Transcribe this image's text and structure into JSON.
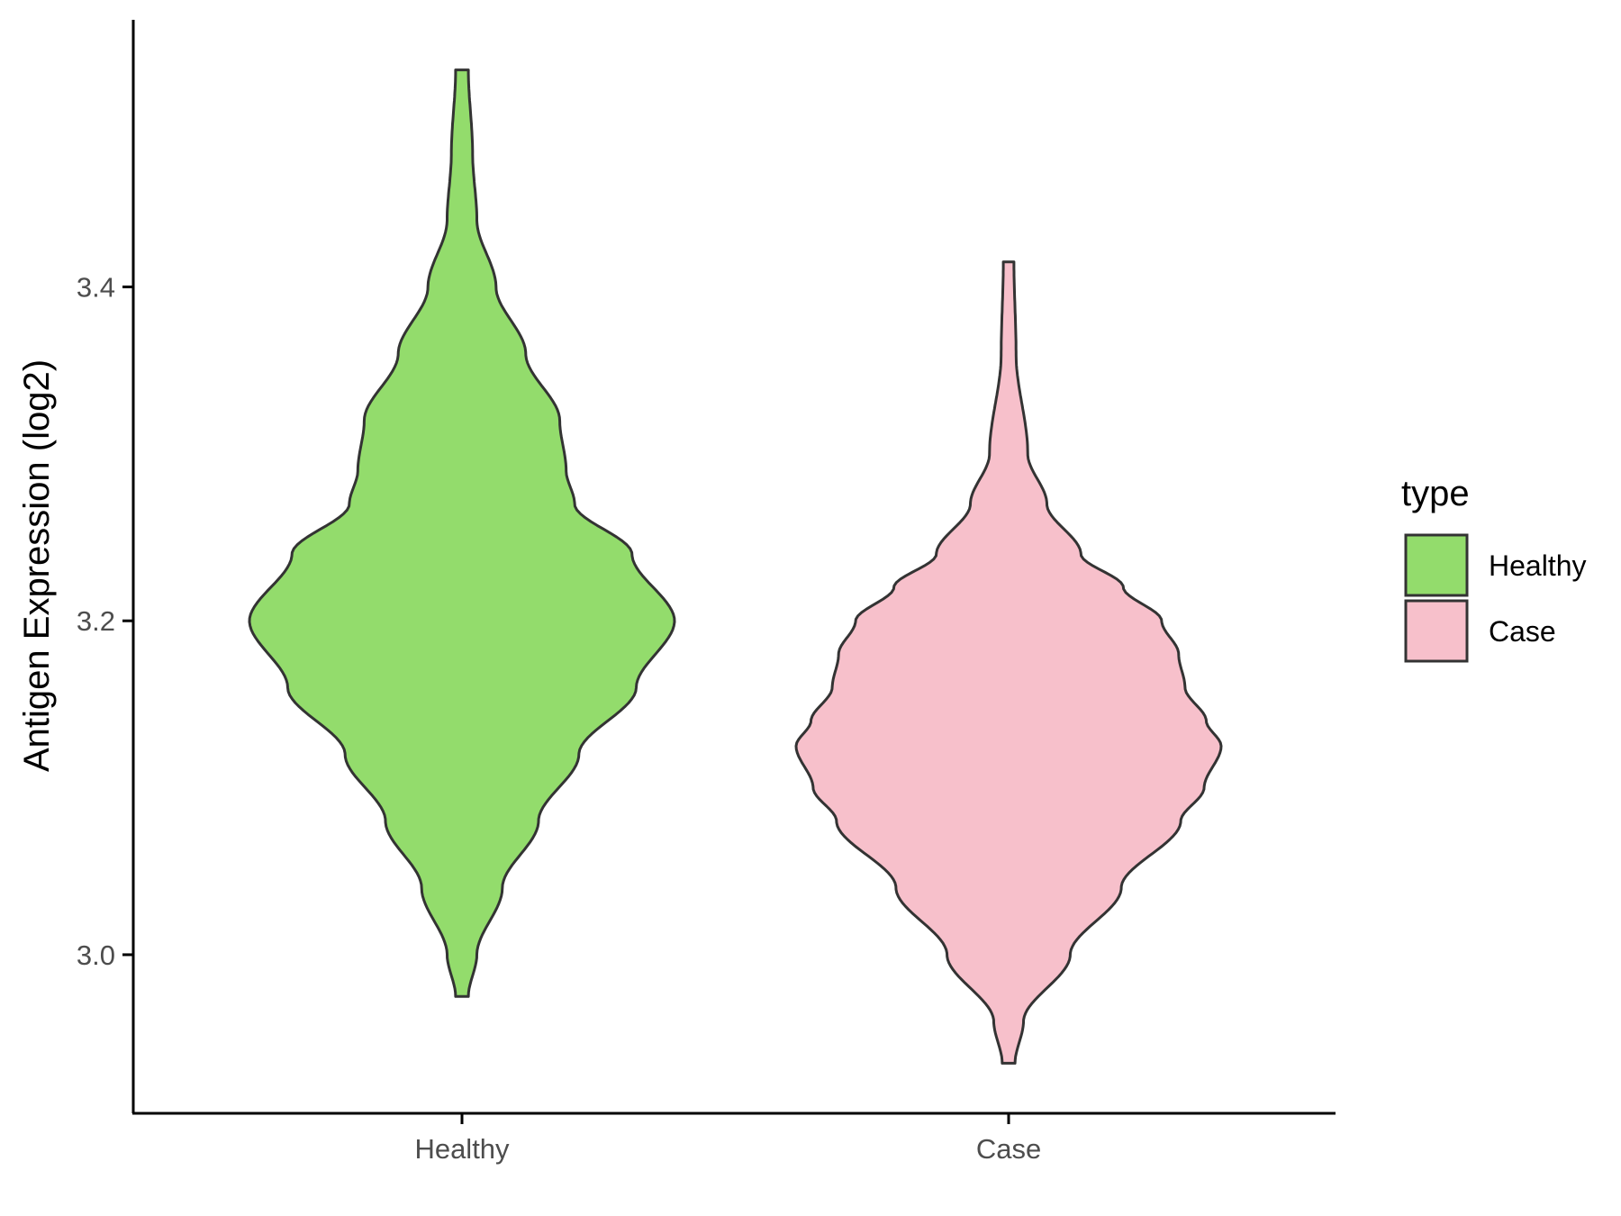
{
  "chart_data": {
    "type": "violin",
    "xlabel": "",
    "ylabel": "Antigen Expression (log2)",
    "ylim": [
      2.905,
      3.56
    ],
    "yticks": [
      "3.0",
      "3.2",
      "3.4"
    ],
    "categories": [
      "Healthy",
      "Case"
    ],
    "grid": false,
    "legend": {
      "title": "type",
      "placement": "right",
      "entries": [
        "Healthy",
        "Case"
      ]
    },
    "colors": {
      "Healthy": "#93dc6c",
      "Case": "#f7c0cb",
      "outline": "#333333",
      "axis": "#000000"
    },
    "series": [
      {
        "name": "Healthy",
        "min": 2.975,
        "max": 3.53,
        "density_profile": [
          [
            2.975,
            0.03
          ],
          [
            3.0,
            0.07
          ],
          [
            3.04,
            0.19
          ],
          [
            3.08,
            0.36
          ],
          [
            3.12,
            0.55
          ],
          [
            3.16,
            0.82
          ],
          [
            3.2,
            1.0
          ],
          [
            3.24,
            0.8
          ],
          [
            3.27,
            0.53
          ],
          [
            3.29,
            0.49
          ],
          [
            3.32,
            0.46
          ],
          [
            3.36,
            0.3
          ],
          [
            3.4,
            0.16
          ],
          [
            3.44,
            0.07
          ],
          [
            3.48,
            0.05
          ],
          [
            3.53,
            0.03
          ]
        ]
      },
      {
        "name": "Case",
        "min": 2.935,
        "max": 3.415,
        "density_profile": [
          [
            2.935,
            0.03
          ],
          [
            2.96,
            0.07
          ],
          [
            3.0,
            0.29
          ],
          [
            3.04,
            0.53
          ],
          [
            3.08,
            0.81
          ],
          [
            3.1,
            0.92
          ],
          [
            3.125,
            1.0
          ],
          [
            3.14,
            0.93
          ],
          [
            3.16,
            0.83
          ],
          [
            3.18,
            0.8
          ],
          [
            3.2,
            0.72
          ],
          [
            3.22,
            0.54
          ],
          [
            3.24,
            0.34
          ],
          [
            3.27,
            0.18
          ],
          [
            3.3,
            0.09
          ],
          [
            3.36,
            0.035
          ],
          [
            3.415,
            0.025
          ]
        ]
      }
    ]
  }
}
